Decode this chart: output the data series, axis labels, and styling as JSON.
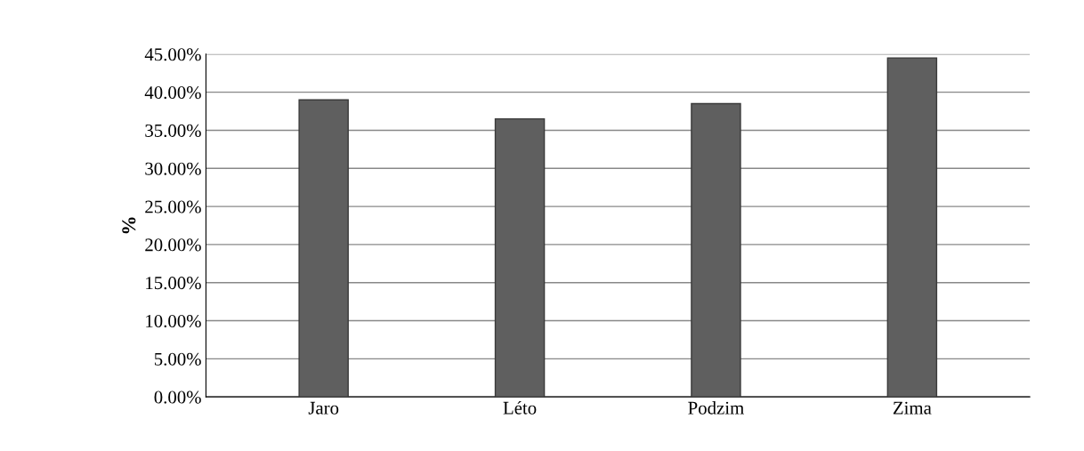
{
  "chart_data": {
    "type": "bar",
    "ylabel": "%",
    "categories": [
      "Jaro",
      "Léto",
      "Podzim",
      "Zima"
    ],
    "series": [
      {
        "color": "#5f5f5f",
        "values": [
          39,
          36.5,
          38.5,
          44.5
        ]
      }
    ],
    "ylim": [
      0,
      45
    ],
    "yticks": [
      {
        "value": 0,
        "label": "0.00%"
      },
      {
        "value": 5,
        "label": "5.00%"
      },
      {
        "value": 10,
        "label": "10.00%"
      },
      {
        "value": 15,
        "label": "15.00%"
      },
      {
        "value": 20,
        "label": "20.00%"
      },
      {
        "value": 25,
        "label": "25.00%"
      },
      {
        "value": 30,
        "label": "30.00%"
      },
      {
        "value": 35,
        "label": "35.00%"
      },
      {
        "value": 40,
        "label": "40.00%"
      },
      {
        "value": 45,
        "label": "45.00%"
      }
    ],
    "grid": "y"
  }
}
